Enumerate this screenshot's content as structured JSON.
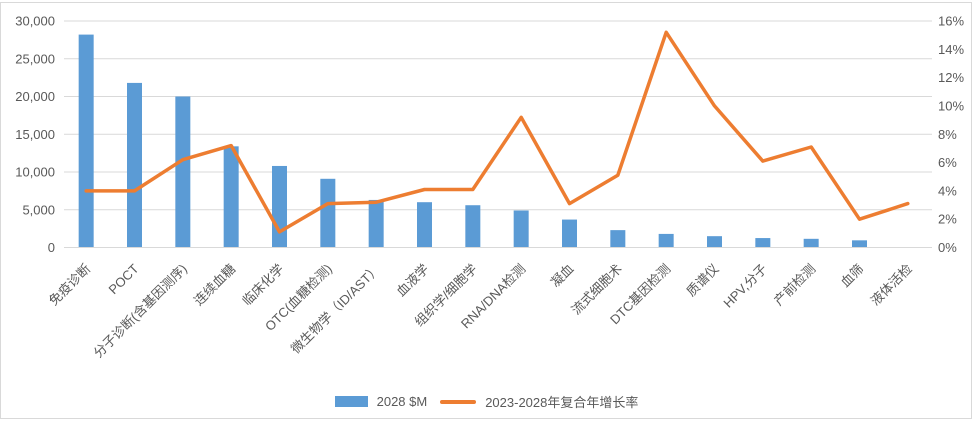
{
  "chart_data": {
    "type": "bar+line combo",
    "title": "",
    "categories": [
      "免疫诊断",
      "POCT",
      "分子诊断(含基因测序)",
      "连续血糖",
      "临床化学",
      "OTC(血糖检测)",
      "微生物学（ID/AST）",
      "血液学",
      "组织学/细胞学",
      "RNA/DNA检测",
      "凝血",
      "流式细胞术",
      "DTC基因检测",
      "质谱仪",
      "HPV,分子",
      "产前检测",
      "血筛",
      "液体活检"
    ],
    "series": [
      {
        "name": "2028 $M",
        "type": "bar",
        "axis": "left",
        "color": "#5B9BD5",
        "values": [
          28200,
          21800,
          20000,
          13400,
          10800,
          9100,
          6300,
          6000,
          5600,
          4900,
          3700,
          2300,
          1800,
          1500,
          1250,
          1150,
          950,
          0
        ]
      },
      {
        "name": "2023-2028年复合年增长率",
        "type": "line",
        "axis": "right",
        "color": "#ED7D31",
        "values": [
          4.0,
          4.0,
          6.2,
          7.2,
          1.1,
          3.1,
          3.2,
          4.1,
          4.1,
          9.2,
          3.1,
          5.1,
          15.2,
          10.0,
          6.1,
          7.1,
          2.0,
          3.1
        ]
      }
    ],
    "left_axis": {
      "min": 0,
      "max": 30000,
      "step": 5000,
      "labels": [
        "0",
        "5,000",
        "10,000",
        "15,000",
        "20,000",
        "25,000",
        "30,000"
      ]
    },
    "right_axis": {
      "min": 0,
      "max": 16,
      "step": 2,
      "unit": "%",
      "labels": [
        "0%",
        "2%",
        "4%",
        "6%",
        "8%",
        "10%",
        "12%",
        "14%",
        "16%"
      ]
    },
    "grid": true,
    "legend_position": "bottom",
    "x_label_rotation_deg": 45
  },
  "colors": {
    "bar": "#5B9BD5",
    "line": "#ED7D31",
    "gridline": "#D9D9D9",
    "axis_text": "#595959",
    "frame_border": "#D9D9D9",
    "background": "#FFFFFF"
  }
}
